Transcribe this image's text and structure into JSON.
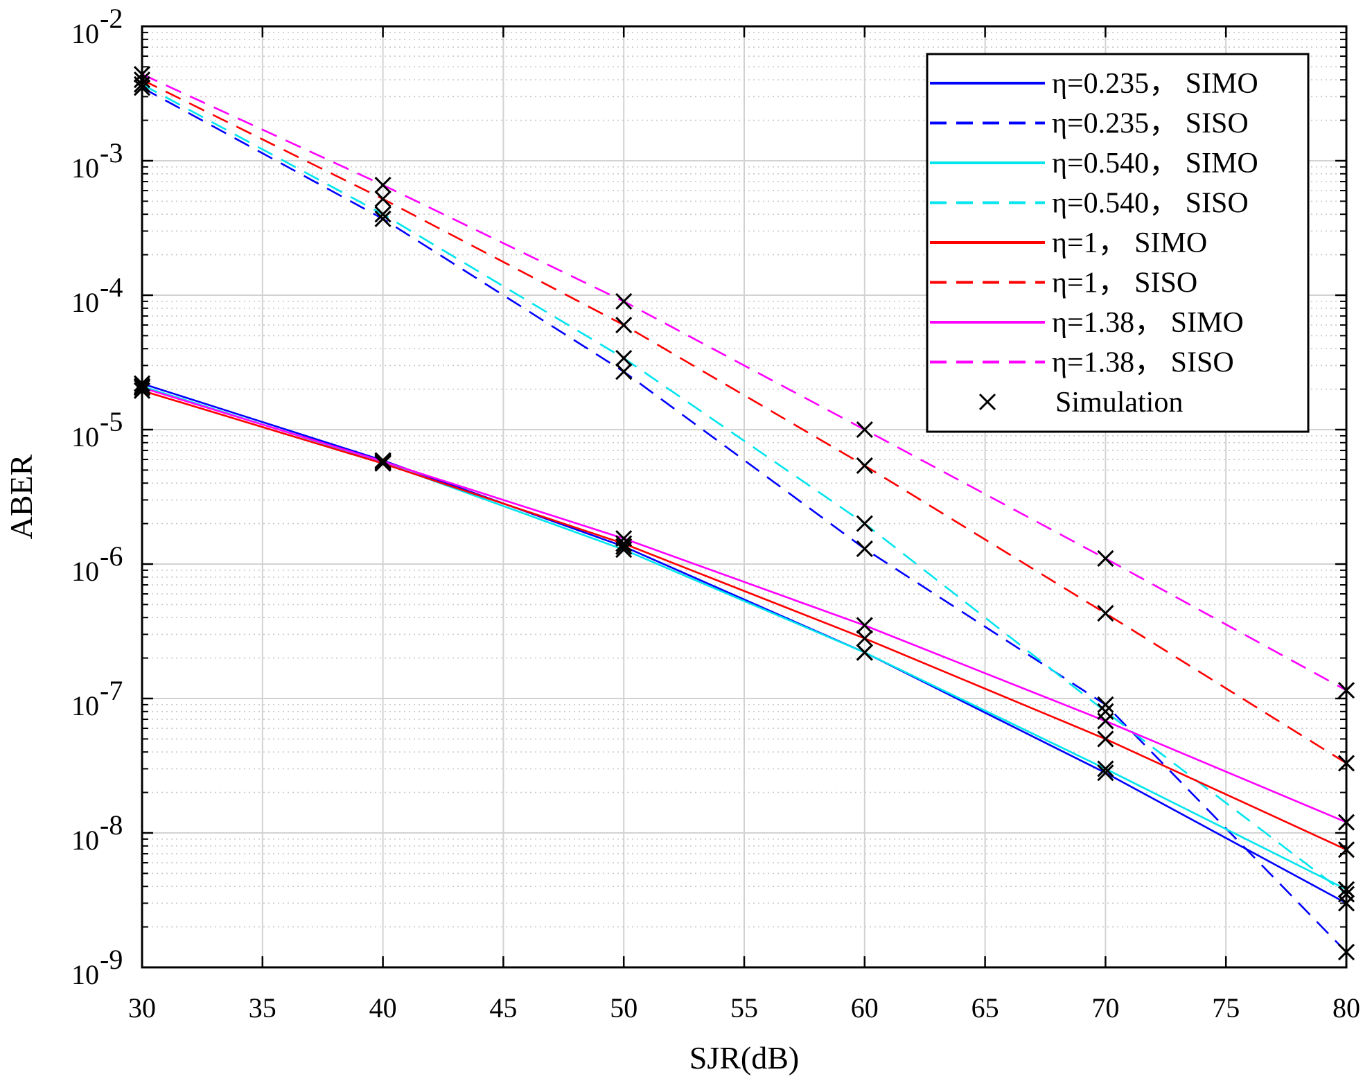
{
  "chart_data": {
    "type": "line",
    "title": "",
    "xlabel": "SJR(dB)",
    "ylabel": "ABER",
    "xscale": "linear",
    "yscale": "log",
    "xlim": [
      30,
      80
    ],
    "ylim": [
      1e-09,
      0.01
    ],
    "grid": true,
    "minor_grid": true,
    "legend_position": "top-right",
    "x_ticks": [
      30,
      35,
      40,
      45,
      50,
      55,
      60,
      65,
      70,
      75,
      80
    ],
    "y_ticks": [
      {
        "value": 1e-09,
        "base": "10",
        "exp": "-9"
      },
      {
        "value": 1e-08,
        "base": "10",
        "exp": "-8"
      },
      {
        "value": 1e-07,
        "base": "10",
        "exp": "-7"
      },
      {
        "value": 1e-06,
        "base": "10",
        "exp": "-6"
      },
      {
        "value": 1e-05,
        "base": "10",
        "exp": "-5"
      },
      {
        "value": 0.0001,
        "base": "10",
        "exp": "-4"
      },
      {
        "value": 0.001,
        "base": "10",
        "exp": "-3"
      },
      {
        "value": 0.01,
        "base": "10",
        "exp": "-2"
      }
    ],
    "series": [
      {
        "name": "η=0.235， SIMO",
        "color": "#0000ff",
        "dash": "solid",
        "x": [
          30,
          40,
          50,
          60,
          70,
          80
        ],
        "y": [
          2.2e-05,
          5.9e-06,
          1.35e-06,
          2.2e-07,
          2.8e-08,
          3e-09
        ]
      },
      {
        "name": "η=0.235， SISO",
        "color": "#0000ff",
        "dash": "dashed",
        "x": [
          30,
          40,
          50,
          60,
          70,
          80
        ],
        "y": [
          0.0035,
          0.00037,
          2.7e-05,
          1.3e-06,
          9e-08,
          1.3e-09
        ]
      },
      {
        "name": "η=0.540， SIMO",
        "color": "#00e5ee",
        "dash": "solid",
        "x": [
          30,
          40,
          50,
          60,
          70,
          80
        ],
        "y": [
          2.1e-05,
          5.7e-06,
          1.28e-06,
          2.2e-07,
          3e-08,
          3.8e-09
        ]
      },
      {
        "name": "η=0.540， SISO",
        "color": "#00e5ee",
        "dash": "dashed",
        "x": [
          30,
          40,
          50,
          60,
          70,
          80
        ],
        "y": [
          0.0037,
          0.0004,
          3.4e-05,
          2e-06,
          8e-08,
          3.5e-09
        ]
      },
      {
        "name": "η=1， SIMO",
        "color": "#ff0000",
        "dash": "solid",
        "x": [
          30,
          40,
          50,
          60,
          70,
          80
        ],
        "y": [
          1.95e-05,
          5.6e-06,
          1.42e-06,
          2.8e-07,
          5e-08,
          7.5e-09
        ]
      },
      {
        "name": "η=1， SISO",
        "color": "#ff0000",
        "dash": "dashed",
        "x": [
          30,
          40,
          50,
          60,
          70,
          80
        ],
        "y": [
          0.004,
          0.00052,
          6e-05,
          5.4e-06,
          4.3e-07,
          3.3e-08
        ]
      },
      {
        "name": "η=1.38， SIMO",
        "color": "#ff00ff",
        "dash": "solid",
        "x": [
          30,
          40,
          50,
          60,
          70,
          80
        ],
        "y": [
          2.05e-05,
          5.8e-06,
          1.55e-06,
          3.5e-07,
          6.8e-08,
          1.2e-08
        ]
      },
      {
        "name": "η=1.38， SISO",
        "color": "#ff00ff",
        "dash": "dashed",
        "x": [
          30,
          40,
          50,
          60,
          70,
          80
        ],
        "y": [
          0.0044,
          0.00066,
          9e-05,
          1e-05,
          1.1e-06,
          1.15e-07
        ]
      }
    ],
    "simulation": {
      "name": "Simulation",
      "color": "#000000",
      "marker": "x"
    }
  }
}
